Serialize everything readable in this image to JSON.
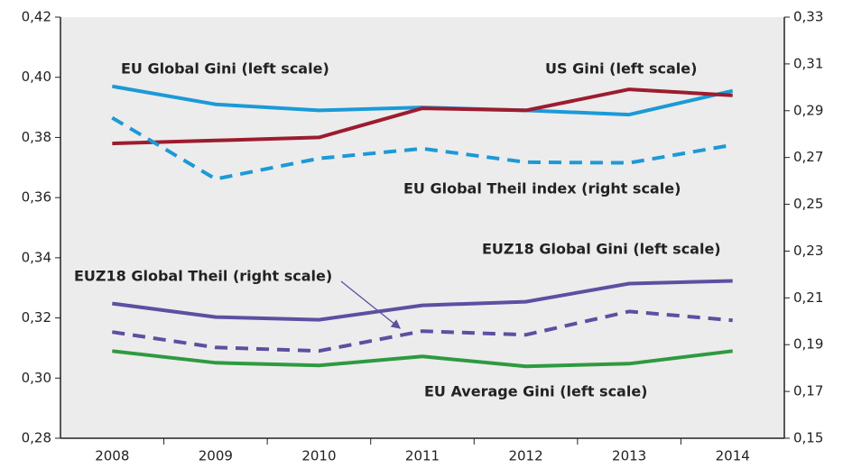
{
  "chart_data": {
    "type": "line",
    "categories": [
      "2008",
      "2009",
      "2010",
      "2011",
      "2012",
      "2013",
      "2014"
    ],
    "ylim": [
      0.28,
      0.42
    ],
    "yticks": [
      {
        "value": 0.28,
        "label": "0,28"
      },
      {
        "value": 0.3,
        "label": "0,30"
      },
      {
        "value": 0.32,
        "label": "0,32"
      },
      {
        "value": 0.34,
        "label": "0,34"
      },
      {
        "value": 0.36,
        "label": "0,36"
      },
      {
        "value": 0.38,
        "label": "0,38"
      },
      {
        "value": 0.4,
        "label": "0,40"
      },
      {
        "value": 0.42,
        "label": "0,42"
      }
    ],
    "y2lim": [
      0.15,
      0.33
    ],
    "y2ticks": [
      {
        "value": 0.15,
        "label": "0,15"
      },
      {
        "value": 0.17,
        "label": "0,17"
      },
      {
        "value": 0.19,
        "label": "0,19"
      },
      {
        "value": 0.21,
        "label": "0,21"
      },
      {
        "value": 0.23,
        "label": "0,23"
      },
      {
        "value": 0.25,
        "label": "0,25"
      },
      {
        "value": 0.27,
        "label": "0,27"
      },
      {
        "value": 0.29,
        "label": "0,29"
      },
      {
        "value": 0.31,
        "label": "0,31"
      },
      {
        "value": 0.33,
        "label": "0,33"
      }
    ],
    "series": [
      {
        "name": "EU Global Gini (left scale)",
        "color": "#1b9ad7",
        "values": [
          0.397,
          0.391,
          0.389,
          0.39,
          0.389,
          0.3876,
          0.3955
        ]
      },
      {
        "name": "US Gini (left scale)",
        "color": "#9c1c2f",
        "values": [
          0.378,
          0.379,
          0.38,
          0.3897,
          0.389,
          0.396,
          0.394
        ]
      },
      {
        "name": "EU Global Theil index (right scale)",
        "color": "#1b9ad7",
        "axis": "y2",
        "dashed": true,
        "values": [
          0.287,
          0.2608,
          0.2696,
          0.2738,
          0.268,
          0.2677,
          0.2754
        ]
      },
      {
        "name": "EUZ18 Global Gini (left scale)",
        "color": "#5d4fa1",
        "values": [
          0.3248,
          0.3203,
          0.3194,
          0.3242,
          0.3254,
          0.3314,
          0.3323
        ]
      },
      {
        "name": "EUZ18 Global Theil (right scale)",
        "color": "#5d4fa1",
        "axis": "y2",
        "dashed": true,
        "values": [
          0.1954,
          0.1888,
          0.1873,
          0.1958,
          0.1942,
          0.2042,
          0.2004
        ]
      },
      {
        "name": "EU Average Gini (left scale)",
        "color": "#2e9a3f",
        "values": [
          0.309,
          0.3051,
          0.3042,
          0.3072,
          0.3039,
          0.3048,
          0.309
        ]
      }
    ]
  }
}
